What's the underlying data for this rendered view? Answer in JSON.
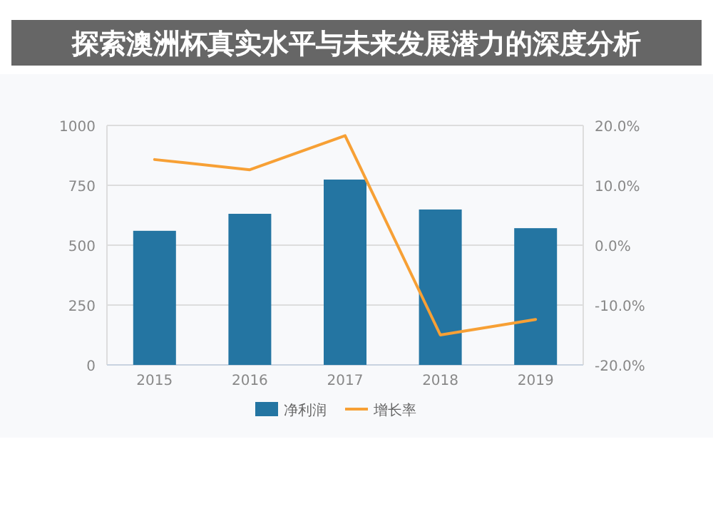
{
  "chart_data": {
    "type": "bar",
    "title": "探索澳洲杯真实水平与未来发展潜力的深度分析",
    "categories": [
      "2015",
      "2016",
      "2017",
      "2018",
      "2019"
    ],
    "series": [
      {
        "name": "净利润",
        "color": "#2475a2",
        "values": [
          560,
          631,
          774,
          649,
          571
        ]
      },
      {
        "name": "增长率",
        "type": "line",
        "axis": "y2",
        "color": "#f7a035",
        "values": [
          14.3,
          12.6,
          18.3,
          -15,
          -12.4
        ]
      }
    ],
    "ylim": [
      0,
      1000
    ],
    "yticks": [
      0,
      250,
      500,
      750,
      1000
    ],
    "y2lim": [
      -20,
      20
    ],
    "y2ticks": [
      {
        "value": -20,
        "label": "-20.0%"
      },
      {
        "value": -10,
        "label": "-10.0%"
      },
      {
        "value": 0,
        "label": "0.0%"
      },
      {
        "value": 10,
        "label": "10.0%"
      },
      {
        "value": 20,
        "label": "20.0%"
      }
    ],
    "grid": "y",
    "legend": "bottom",
    "marker": "none"
  }
}
